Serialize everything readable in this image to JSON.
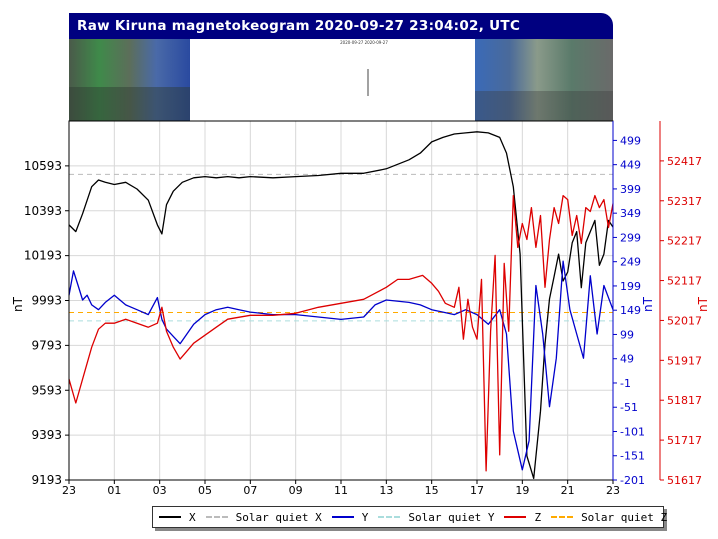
{
  "header": {
    "title": "Raw Kiruna magnetokeogram 2020-09-27 23:04:02, UTC",
    "keogram_caption": "2020-09-27 2020-09-27"
  },
  "colors": {
    "title_bg": "#000080",
    "x_series": "#000000",
    "y_series": "#0000cc",
    "z_series": "#dd0000",
    "quiet_x": "#bbbbbb",
    "quiet_y": "#aadddd",
    "quiet_z": "#ffaa00",
    "grid": "#d8d8d8"
  },
  "chart_data": {
    "type": "line",
    "grid": true,
    "legend_position": "bottom",
    "xlabel": "",
    "x_range_hours": [
      23,
      47
    ],
    "x_tick_labels": [
      "23",
      "01",
      "03",
      "05",
      "07",
      "09",
      "11",
      "13",
      "15",
      "17",
      "19",
      "21",
      "23"
    ],
    "axes": {
      "left": {
        "label": "nT",
        "range": [
          9193,
          10793
        ],
        "ticks": [
          "9193",
          "9393",
          "9593",
          "9793",
          "9993",
          "10193",
          "10393",
          "10593"
        ],
        "color": "#000000"
      },
      "right_y": {
        "label": "nT",
        "range": [
          -201,
          539
        ],
        "ticks": [
          "-201",
          "-151",
          "-101",
          "-51",
          "-1",
          "49",
          "99",
          "149",
          "199",
          "249",
          "299",
          "349",
          "399",
          "449",
          "499"
        ],
        "color": "#0000cc"
      },
      "right_z": {
        "label": "nT",
        "range": [
          51617,
          52517
        ],
        "ticks": [
          "51617",
          "51717",
          "51817",
          "51917",
          "52017",
          "52117",
          "52217",
          "52317",
          "52417"
        ],
        "color": "#dd0000"
      }
    },
    "series": [
      {
        "name": "X",
        "axis": "left",
        "color": "#000000",
        "t": [
          23.0,
          23.3,
          23.6,
          24.0,
          24.3,
          24.6,
          25.0,
          25.5,
          26.0,
          26.5,
          26.9,
          27.1,
          27.3,
          27.6,
          28.0,
          28.5,
          29.0,
          29.5,
          30.0,
          30.5,
          31.0,
          32.0,
          33.0,
          34.0,
          35.0,
          36.0,
          37.0,
          38.0,
          38.5,
          39.0,
          39.5,
          40.0,
          40.5,
          41.0,
          41.5,
          42.0,
          42.3,
          42.6,
          42.9,
          43.2,
          43.5,
          43.8,
          44.0,
          44.2,
          44.4,
          44.6,
          44.8,
          45.0,
          45.2,
          45.4,
          45.6,
          45.8,
          46.0,
          46.2,
          46.4,
          46.6,
          46.8,
          47.0
        ],
        "values": [
          10330,
          10300,
          10380,
          10500,
          10530,
          10520,
          10510,
          10520,
          10490,
          10440,
          10330,
          10290,
          10420,
          10480,
          10520,
          10540,
          10545,
          10540,
          10545,
          10540,
          10545,
          10540,
          10545,
          10550,
          10560,
          10560,
          10580,
          10620,
          10650,
          10700,
          10720,
          10735,
          10740,
          10745,
          10740,
          10720,
          10650,
          10500,
          10200,
          9300,
          9200,
          9500,
          9800,
          10000,
          10100,
          10200,
          10080,
          10120,
          10250,
          10300,
          10050,
          10250,
          10300,
          10350,
          10150,
          10200,
          10350,
          10320
        ]
      },
      {
        "name": "Solar quiet X",
        "axis": "left",
        "color": "#bbbbbb",
        "dashed": true,
        "t": [
          23,
          47
        ],
        "values": [
          10555,
          10555
        ]
      },
      {
        "name": "Y",
        "axis": "right_y",
        "color": "#0000cc",
        "t": [
          23.0,
          23.2,
          23.4,
          23.6,
          23.8,
          24.0,
          24.3,
          24.6,
          25.0,
          25.5,
          26.0,
          26.5,
          26.9,
          27.1,
          27.3,
          27.6,
          27.9,
          28.2,
          28.5,
          29.0,
          29.5,
          30.0,
          30.5,
          31.0,
          32.0,
          33.0,
          34.0,
          35.0,
          36.0,
          36.5,
          37.0,
          38.0,
          38.5,
          39.0,
          39.5,
          40.0,
          40.5,
          41.0,
          41.5,
          42.0,
          42.3,
          42.6,
          43.0,
          43.3,
          43.6,
          43.9,
          44.2,
          44.5,
          44.8,
          45.1,
          45.4,
          45.7,
          46.0,
          46.3,
          46.6,
          47.0
        ],
        "values": [
          180,
          230,
          200,
          170,
          180,
          160,
          150,
          165,
          180,
          160,
          150,
          140,
          175,
          130,
          110,
          95,
          80,
          100,
          120,
          140,
          150,
          155,
          150,
          145,
          140,
          140,
          135,
          130,
          135,
          160,
          170,
          165,
          160,
          150,
          145,
          140,
          150,
          140,
          120,
          150,
          100,
          -100,
          -180,
          -120,
          200,
          100,
          -50,
          50,
          250,
          150,
          100,
          50,
          220,
          100,
          200,
          150
        ]
      },
      {
        "name": "Solar quiet Y",
        "axis": "right_y",
        "color": "#aadddd",
        "dashed": true,
        "t": [
          23,
          47
        ],
        "values": [
          127,
          127
        ]
      },
      {
        "name": "Z",
        "axis": "right_z",
        "color": "#dd0000",
        "t": [
          23.0,
          23.3,
          23.6,
          24.0,
          24.3,
          24.6,
          25.0,
          25.5,
          26.0,
          26.5,
          26.9,
          27.1,
          27.3,
          27.6,
          27.9,
          28.2,
          28.5,
          29.0,
          29.5,
          30.0,
          31.0,
          32.0,
          33.0,
          34.0,
          35.0,
          36.0,
          36.5,
          37.0,
          37.5,
          38.0,
          38.3,
          38.6,
          39.0,
          39.3,
          39.6,
          40.0,
          40.2,
          40.4,
          40.6,
          40.8,
          41.0,
          41.2,
          41.4,
          41.6,
          41.8,
          42.0,
          42.2,
          42.4,
          42.6,
          42.8,
          43.0,
          43.2,
          43.4,
          43.6,
          43.8,
          44.0,
          44.2,
          44.4,
          44.6,
          44.8,
          45.0,
          45.2,
          45.4,
          45.6,
          45.8,
          46.0,
          46.2,
          46.4,
          46.6,
          46.8,
          47.0
        ],
        "values": [
          51870,
          51810,
          51870,
          51950,
          51995,
          52010,
          52010,
          52020,
          52010,
          52000,
          52010,
          52050,
          51990,
          51950,
          51920,
          51940,
          51960,
          51980,
          52000,
          52020,
          52030,
          52030,
          52035,
          52050,
          52060,
          52070,
          52085,
          52100,
          52120,
          52120,
          52125,
          52130,
          52110,
          52090,
          52060,
          52050,
          52100,
          51970,
          52070,
          52000,
          51970,
          52120,
          51640,
          51990,
          52180,
          51680,
          52160,
          51990,
          52330,
          52200,
          52260,
          52220,
          52300,
          52200,
          52280,
          52100,
          52220,
          52300,
          52260,
          52330,
          52320,
          52230,
          52280,
          52210,
          52300,
          52290,
          52330,
          52300,
          52320,
          52250,
          52310
        ]
      },
      {
        "name": "Solar quiet Z",
        "axis": "right_z",
        "color": "#ffaa00",
        "dashed": true,
        "t": [
          23,
          47
        ],
        "values": [
          52037,
          52037
        ]
      }
    ]
  },
  "legend": {
    "items": [
      {
        "label": "X",
        "color": "#000000",
        "dashed": false
      },
      {
        "label": "Solar quiet X",
        "color": "#bbbbbb",
        "dashed": true
      },
      {
        "label": "Y",
        "color": "#0000cc",
        "dashed": false
      },
      {
        "label": "Solar quiet Y",
        "color": "#aadddd",
        "dashed": true
      },
      {
        "label": "Z",
        "color": "#dd0000",
        "dashed": false
      },
      {
        "label": "Solar quiet Z",
        "color": "#ffaa00",
        "dashed": true
      }
    ]
  }
}
